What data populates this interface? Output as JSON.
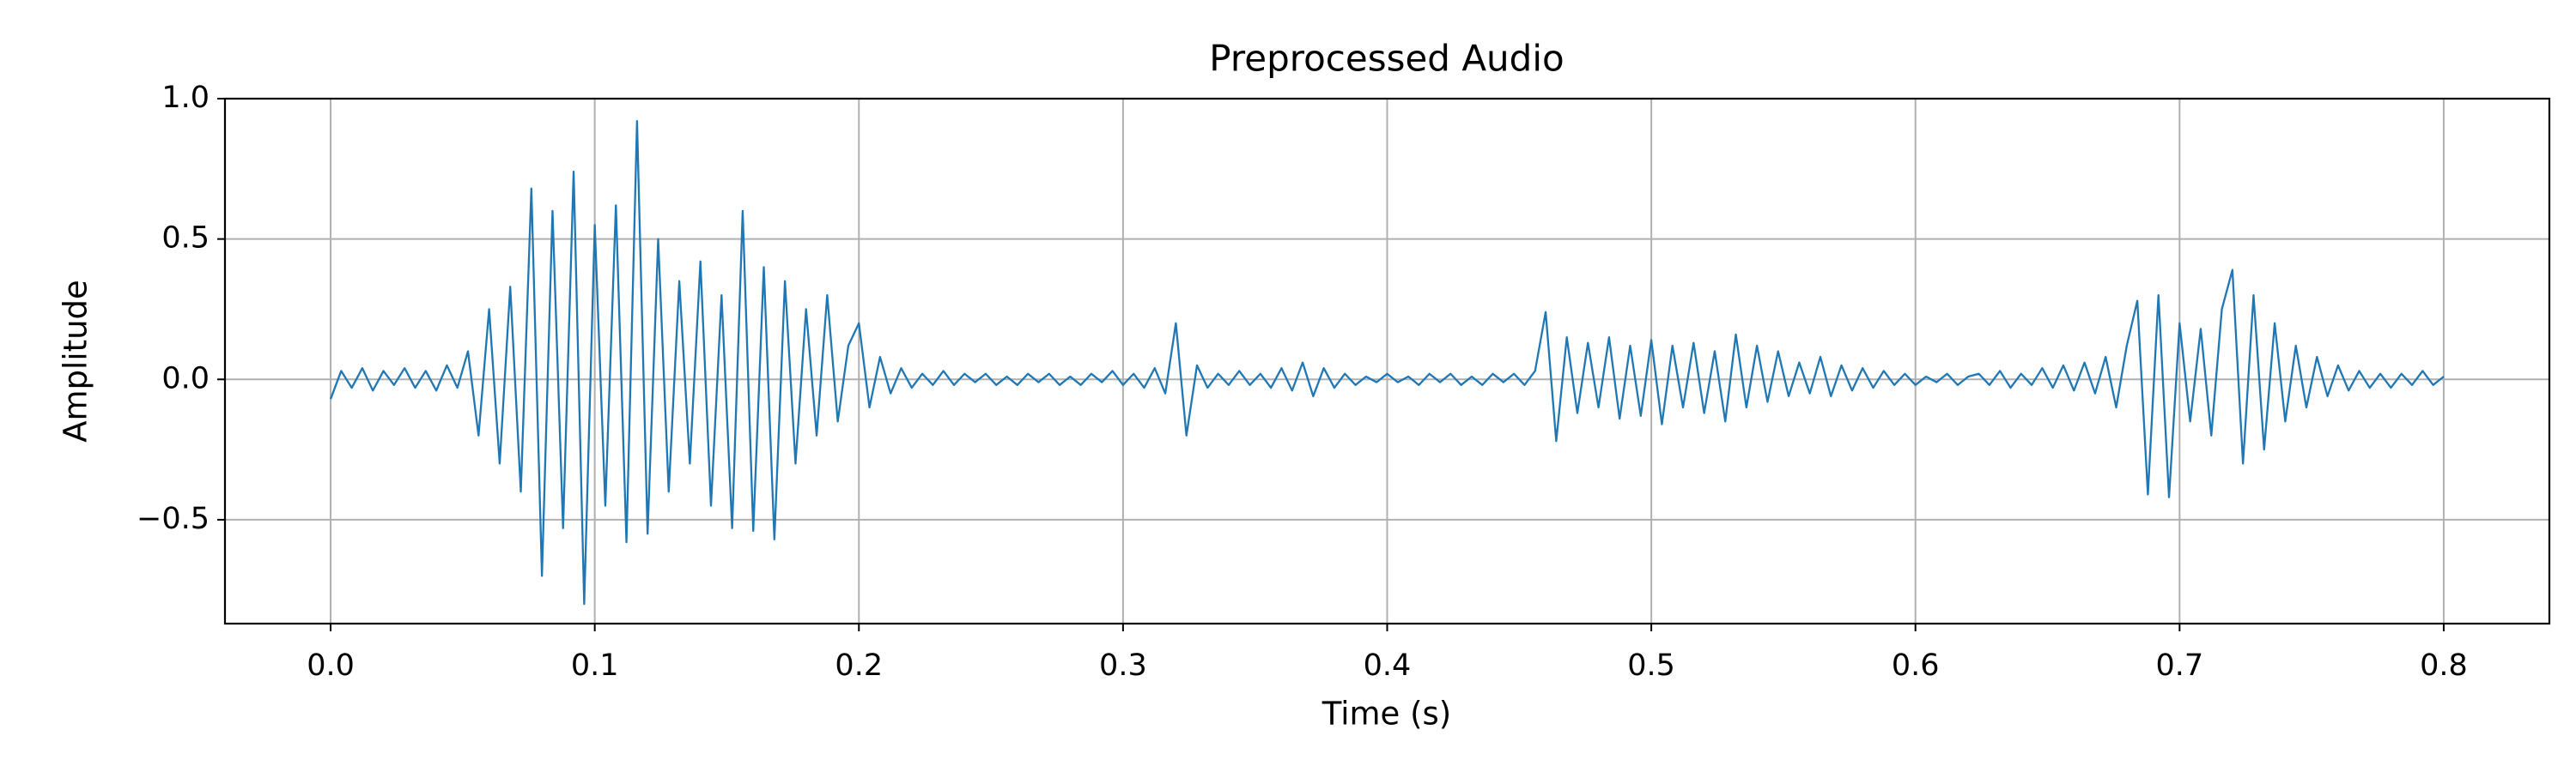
{
  "chart_data": {
    "type": "line",
    "title": "Preprocessed Audio",
    "xlabel": "Time (s)",
    "ylabel": "Amplitude",
    "color": "#1f77b4",
    "grid": true,
    "xlim": [
      -0.04,
      0.84
    ],
    "ylim": [
      -0.87,
      1.0
    ],
    "xticks": [
      {
        "value": 0,
        "label": "0.0"
      },
      0.1,
      0.2,
      0.3,
      0.4,
      0.5,
      0.6,
      0.7,
      0.8
    ],
    "yticks": [
      {
        "value": -0.5,
        "label": "−0.5"
      },
      {
        "value": 0,
        "label": "0.0"
      },
      0.5,
      {
        "value": 1,
        "label": "1.0"
      }
    ],
    "x": [
      0,
      0.004,
      0.008,
      0.012,
      0.016,
      0.02,
      0.024,
      0.028,
      0.032,
      0.036,
      0.04,
      0.044,
      0.048,
      0.052,
      0.056,
      0.06,
      0.064,
      0.068,
      0.072,
      0.076,
      0.08,
      0.084,
      0.088,
      0.092,
      0.096,
      0.1,
      0.104,
      0.108,
      0.112,
      0.116,
      0.12,
      0.124,
      0.128,
      0.132,
      0.136,
      0.14,
      0.144,
      0.148,
      0.152,
      0.156,
      0.16,
      0.164,
      0.168,
      0.172,
      0.176,
      0.18,
      0.184,
      0.188,
      0.192,
      0.196,
      0.2,
      0.204,
      0.208,
      0.212,
      0.216,
      0.22,
      0.224,
      0.228,
      0.232,
      0.236,
      0.24,
      0.244,
      0.248,
      0.252,
      0.256,
      0.26,
      0.264,
      0.268,
      0.272,
      0.276,
      0.28,
      0.284,
      0.288,
      0.292,
      0.296,
      0.3,
      0.304,
      0.308,
      0.312,
      0.316,
      0.32,
      0.324,
      0.328,
      0.332,
      0.336,
      0.34,
      0.344,
      0.348,
      0.352,
      0.356,
      0.36,
      0.364,
      0.368,
      0.372,
      0.376,
      0.38,
      0.384,
      0.388,
      0.392,
      0.396,
      0.4,
      0.404,
      0.408,
      0.412,
      0.416,
      0.42,
      0.424,
      0.428,
      0.432,
      0.436,
      0.44,
      0.444,
      0.448,
      0.452,
      0.456,
      0.46,
      0.464,
      0.468,
      0.472,
      0.476,
      0.48,
      0.484,
      0.488,
      0.492,
      0.496,
      0.5,
      0.504,
      0.508,
      0.512,
      0.516,
      0.52,
      0.524,
      0.528,
      0.532,
      0.536,
      0.54,
      0.544,
      0.548,
      0.552,
      0.556,
      0.56,
      0.564,
      0.568,
      0.572,
      0.576,
      0.58,
      0.584,
      0.588,
      0.592,
      0.596,
      0.6,
      0.604,
      0.608,
      0.612,
      0.616,
      0.62,
      0.624,
      0.628,
      0.632,
      0.636,
      0.64,
      0.644,
      0.648,
      0.652,
      0.656,
      0.66,
      0.664,
      0.668,
      0.672,
      0.676,
      0.68,
      0.684,
      0.688,
      0.692,
      0.696,
      0.7,
      0.704,
      0.708,
      0.712,
      0.716,
      0.72,
      0.724,
      0.728,
      0.732,
      0.736,
      0.74,
      0.744,
      0.748,
      0.752,
      0.756,
      0.76,
      0.764,
      0.768,
      0.772,
      0.776,
      0.78,
      0.784,
      0.788,
      0.792,
      0.796,
      0.8
    ],
    "values": [
      -0.07,
      0.03,
      -0.03,
      0.04,
      -0.04,
      0.03,
      -0.02,
      0.04,
      -0.03,
      0.03,
      -0.04,
      0.05,
      -0.03,
      0.1,
      -0.2,
      0.25,
      -0.3,
      0.33,
      -0.4,
      0.68,
      -0.7,
      0.6,
      -0.53,
      0.74,
      -0.8,
      0.55,
      -0.45,
      0.62,
      -0.58,
      0.92,
      -0.55,
      0.5,
      -0.4,
      0.35,
      -0.3,
      0.42,
      -0.45,
      0.3,
      -0.53,
      0.6,
      -0.54,
      0.4,
      -0.57,
      0.35,
      -0.3,
      0.25,
      -0.2,
      0.3,
      -0.15,
      0.12,
      0.2,
      -0.1,
      0.08,
      -0.05,
      0.04,
      -0.03,
      0.02,
      -0.02,
      0.03,
      -0.02,
      0.02,
      -0.01,
      0.02,
      -0.02,
      0.01,
      -0.02,
      0.02,
      -0.01,
      0.02,
      -0.02,
      0.01,
      -0.02,
      0.02,
      -0.01,
      0.03,
      -0.02,
      0.02,
      -0.03,
      0.04,
      -0.05,
      0.2,
      -0.2,
      0.05,
      -0.03,
      0.02,
      -0.02,
      0.03,
      -0.02,
      0.02,
      -0.03,
      0.04,
      -0.04,
      0.06,
      -0.06,
      0.04,
      -0.03,
      0.02,
      -0.02,
      0.01,
      -0.01,
      0.02,
      -0.01,
      0.01,
      -0.02,
      0.02,
      -0.01,
      0.02,
      -0.02,
      0.01,
      -0.02,
      0.02,
      -0.01,
      0.02,
      -0.02,
      0.03,
      0.24,
      -0.22,
      0.15,
      -0.12,
      0.13,
      -0.1,
      0.15,
      -0.14,
      0.12,
      -0.13,
      0.14,
      -0.16,
      0.12,
      -0.1,
      0.13,
      -0.12,
      0.1,
      -0.15,
      0.16,
      -0.1,
      0.12,
      -0.08,
      0.1,
      -0.06,
      0.06,
      -0.05,
      0.08,
      -0.06,
      0.05,
      -0.04,
      0.04,
      -0.03,
      0.03,
      -0.02,
      0.02,
      -0.02,
      0.01,
      -0.01,
      0.02,
      -0.02,
      0.01,
      0.02,
      -0.02,
      0.03,
      -0.03,
      0.02,
      -0.02,
      0.04,
      -0.03,
      0.05,
      -0.04,
      0.06,
      -0.05,
      0.08,
      -0.1,
      0.12,
      0.28,
      -0.41,
      0.3,
      -0.42,
      0.2,
      -0.15,
      0.18,
      -0.2,
      0.25,
      0.39,
      -0.3,
      0.3,
      -0.25,
      0.2,
      -0.15,
      0.12,
      -0.1,
      0.08,
      -0.06,
      0.05,
      -0.04,
      0.03,
      -0.03,
      0.02,
      -0.03,
      0.02,
      -0.02,
      0.03,
      -0.02,
      0.01
    ]
  }
}
